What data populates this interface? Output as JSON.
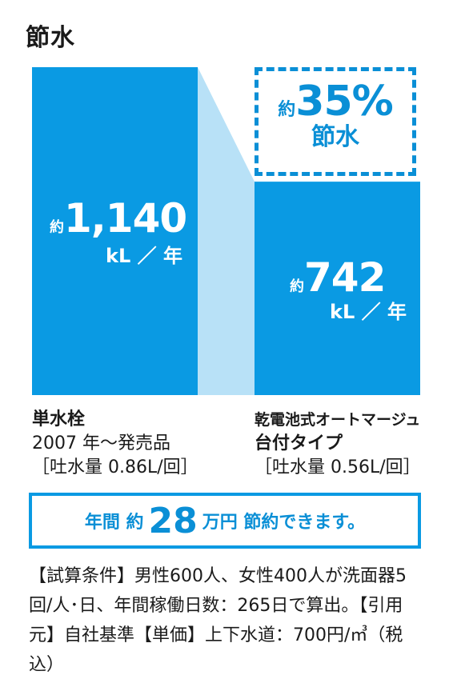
{
  "title": "節水",
  "colors": {
    "bar": "#0a9ae3",
    "connector": "#b8e1f7",
    "accent": "#0a8fd6"
  },
  "chart_data": {
    "type": "bar",
    "categories": [
      "単水栓",
      "乾電池式オートマージュ台付タイプ"
    ],
    "values": [
      1140,
      742
    ],
    "unit": "kL／年",
    "bars": [
      {
        "approx": "約",
        "value_label": "1,140",
        "unit_label": "kL ／ 年"
      },
      {
        "approx": "約",
        "value_label": "742",
        "unit_label": "kL ／ 年"
      }
    ]
  },
  "savings": {
    "approx": "約",
    "percent": "35%",
    "label": "節水"
  },
  "left_label": {
    "name": "単水栓",
    "line2": "2007 年～発売品",
    "line3": "［吐水量 0.86L/回］"
  },
  "right_label": {
    "name": "乾電池式オートマージュ",
    "line2": "台付タイプ",
    "line3": "［吐水量 0.56L/回］"
  },
  "summary": {
    "prefix": "年間 約",
    "amount": "28",
    "suffix": "万円 節約できます。"
  },
  "conditions": "【試算条件】男性600人、女性400人が洗面器5回/人･日、年間稼働日数：265日で算出。【引用元】自社基準【単価】上下水道：700円/㎥（税込）"
}
